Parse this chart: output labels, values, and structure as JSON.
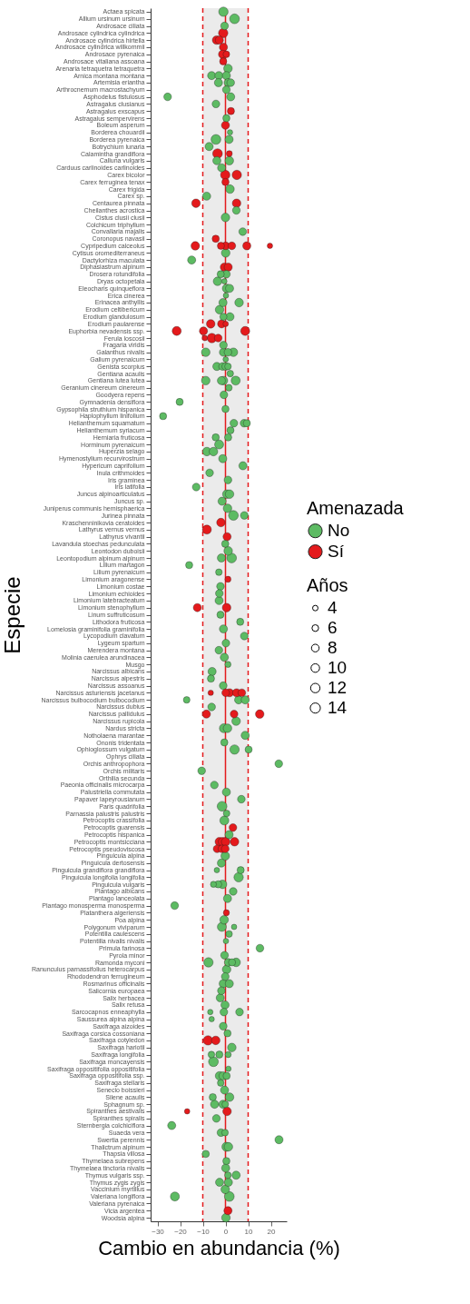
{
  "chart_data": {
    "type": "bubble",
    "orientation": "horizontal",
    "xlabel": "Cambio en abundancia (%)",
    "ylabel": "Especie",
    "legend_title": "Amenazada",
    "annotations": [
      "Años"
    ],
    "legend": "right",
    "grid": false,
    "marker": "circle",
    "xlim": [
      -33,
      27
    ],
    "xticks": [
      -30,
      -20,
      -10,
      0,
      10,
      20
    ],
    "size_legend": [
      4,
      6,
      8,
      10,
      12,
      14
    ],
    "categories": [
      "Actaea spicata",
      "Allium ursinum ursinum",
      "Androsace ciliata",
      "Androsace cylindrica cylindrica",
      "Androsace cylindrica hirtella",
      "Androsace cylindrica willkommii",
      "Androsace pyrenaica",
      "Androsace vitaliana assoana",
      "Arenaria tetraquetra tetraquetra",
      "Arnica montana montana",
      "Artemisia eriantha",
      "Arthrocnemum macrostachyum",
      "Asphodelus fistulosus",
      "Astragalus clusianus",
      "Astragalus exscapus",
      "Astragalus sempervirens",
      "Boleum asperum",
      "Borderea chouardii",
      "Borderea pyrenaica",
      "Botrychium lunaria",
      "Calamintha grandiflora",
      "Calluna vulgaris",
      "Carduus carlinoides carlinoides",
      "Carex bicolor",
      "Carex ferruginea tenax",
      "Carex frigida",
      "Carex sp.",
      "Centaurea pinnata",
      "Cheilanthes acrostica",
      "Cistus clusii clusii",
      "Colchicum triphyllum",
      "Convallaria majalis",
      "Coronopus navasii",
      "Cypripedium calceolus",
      "Cytisus oromediterraneus",
      "Dactylorhiza maculata",
      "Diphasiastrum alpinum",
      "Drosera rotundifolia",
      "Dryas octopetala",
      "Eleocharis quinqueflora",
      "Erica cinerea",
      "Erinacea anthyllis",
      "Erodium celtibericum",
      "Erodium glandulosum",
      "Erodium paularense",
      "Euphorbia nevadensis ssp.",
      "Ferula loscosii",
      "Fragaria viridis",
      "Galanthus nivalis",
      "Galium pyrenaicum",
      "Genista scorpius",
      "Gentiana acaulis",
      "Gentiana lutea lutea",
      "Geranium cinereum cinereum",
      "Goodyera repens",
      "Gymnadenia densiflora",
      "Gypsophila struthium hispanica",
      "Haplophyllum linifolium",
      "Helianthemum squamatum",
      "Helianthemum syriacum",
      "Herniaria fruticosa",
      "Horminum pyrenaicum",
      "Huperzia selago",
      "Hymenostylium recurvirostrum",
      "Hypericum caprifolium",
      "Inula crithmoides",
      "Iris graminea",
      "Iris latifolia",
      "Juncus alpinoarticulatus",
      "Juncus sp.",
      "Juniperus communis hemisphaerica",
      "Jurinea pinnata",
      "Kraschenninikovia ceratoides",
      "Lathyrus vernus vernus",
      "Lathyrus vivantii",
      "Lavandula stoechas pedunculata",
      "Leontodon duboisii",
      "Leontopodium alpinum alpinum",
      "Lilium martagon",
      "Lilium pyrenaicum",
      "Limonium aragonense",
      "Limonium costae",
      "Limonium echioides",
      "Limonium latebracteatum",
      "Limonium stenophyllum",
      "Linum suffruticosum",
      "Lithodora fruticosa",
      "Lomelosia graminifolia graminifolia",
      "Lycopodium clavatum",
      "Lygeum spartum",
      "Merendera montana",
      "Molinia caerulea arundinacea",
      "Musgo",
      "Narcissus albicans",
      "Narcissus alpestris",
      "Narcissus assoanus",
      "Narcissus asturiensis jacetanus",
      "Narcissus bulbocodium bulbocodium",
      "Narcissus dubius",
      "Narcissus pallidulus",
      "Narcissus rupicola",
      "Nardus stricta",
      "Notholaena marantae",
      "Ononis tridentata",
      "Ophioglossum vulgatum",
      "Ophrys ciliata",
      "Orchis anthropophora",
      "Orchis militaris",
      "Orthilia secunda",
      "Paeonia officinalis microcarpa",
      "Palustriella commutata",
      "Papaver lapeyrousianum",
      "Paris quadrifolia",
      "Parnassia palustris palustris",
      "Petrocoptis crassifolia",
      "Petrocoptis guarensis",
      "Petrocoptis hispanica",
      "Petrocoptis montsicciana",
      "Petrocoptis pseudoviscosa",
      "Pinguicula alpina",
      "Pinguicula dertosensis",
      "Pinguicula grandiflora grandiflora",
      "Pinguicula longifolia longifolia",
      "Pinguicula vulgaris",
      "Plantago albicans",
      "Plantago lanceolata",
      "Plantago monosperma monosperma",
      "Platanthera algeriensis",
      "Poa alpina",
      "Polygonum viviparum",
      "Potentilla caulescens",
      "Potentilla nivalis nivalis",
      "Primula farinosa",
      "Pyrola minor",
      "Ramonda myconi",
      "Ranunculus parnassifolius heterocarpus",
      "Rhododendron ferrugineum",
      "Rosmarinus officinalis",
      "Salicornia europaea",
      "Salix herbacea",
      "Salix retusa",
      "Sarcocapnos enneaphylla",
      "Saussurea alpina alpina",
      "Saxifraga aizoides",
      "Saxifraga corsica cossoniana",
      "Saxifraga cotyledon",
      "Saxifraga hariotii",
      "Saxifraga longifolia",
      "Saxifraga moncayensis",
      "Saxifraga oppositifolia oppositifolia",
      "Saxifraga oppositifolia ssp.",
      "Saxifraga stellaris",
      "Senecio boissieri",
      "Silene acaulis",
      "Sphagnum sp.",
      "Spiranthes aestivalis",
      "Spiranthes spiralis",
      "Sternbergia colchiciflora",
      "Suaeda vera",
      "Swertia perennis",
      "Thalictrum alpinum",
      "Thapsia villosa",
      "Thymelaea subrepens",
      "Thymelaea tinctoria nivalis",
      "Thymus vulgaris ssp.",
      "Thymus zygis zygis",
      "Vaccinium myrtillus",
      "Valeriana longiflora",
      "Valeriana pyrenaica",
      "Vicia argentea",
      "Woodsia alpina"
    ],
    "bands": [
      {
        "axis": "x",
        "from": -10,
        "to": 10,
        "color": "#ebebeb"
      }
    ],
    "ref_lines": [
      {
        "axis": "x",
        "value": -10,
        "color": "#e41a1c",
        "line_style": "dashed"
      },
      {
        "axis": "x",
        "value": 0,
        "color": "#e41a1c",
        "line_style": "solid"
      },
      {
        "axis": "x",
        "value": 10,
        "color": "#e41a1c",
        "line_style": "dashed"
      }
    ],
    "series": [
      {
        "name": "No",
        "color": "#5dbb63",
        "x": [
          "Actaea spicata",
          "Allium ursinum ursinum",
          "Androsace ciliata",
          "Arenaria tetraquetra tetraquetra",
          "Arnica montana montana",
          "Arnica montana montana",
          "Arnica montana montana",
          "Artemisia eriantha",
          "Artemisia eriantha",
          "Artemisia eriantha",
          "Arthrocnemum macrostachyum",
          "Asphodelus fistulosus",
          "Asphodelus fistulosus",
          "Astragalus clusianus",
          "Astragalus sempervirens",
          "Borderea chouardii",
          "Borderea pyrenaica",
          "Borderea pyrenaica",
          "Botrychium lunaria",
          "Calluna vulgaris",
          "Calluna vulgaris",
          "Carduus carlinoides carlinoides",
          "Carex frigida",
          "Carex sp.",
          "Cheilanthes acrostica",
          "Cistus clusii clusii",
          "Convallaria majalis",
          "Cytisus oromediterraneus",
          "Dactylorhiza maculata",
          "Drosera rotundifolia",
          "Drosera rotundifolia",
          "Dryas octopetala",
          "Dryas octopetala",
          "Eleocharis quinqueflora",
          "Eleocharis quinqueflora",
          "Erica cinerea",
          "Erinacea anthyllis",
          "Erinacea anthyllis",
          "Erodium celtibericum",
          "Erodium glandulosum",
          "Erodium glandulosum",
          "Fragaria viridis",
          "Galanthus nivalis",
          "Galanthus nivalis",
          "Galanthus nivalis",
          "Galanthus nivalis",
          "Galium pyrenaicum",
          "Genista scorpius",
          "Genista scorpius",
          "Genista scorpius",
          "Genista scorpius",
          "Gentiana acaulis",
          "Gentiana lutea lutea",
          "Gentiana lutea lutea",
          "Gentiana lutea lutea",
          "Gentiana lutea lutea",
          "Geranium cinereum cinereum",
          "Goodyera repens",
          "Gymnadenia densiflora",
          "Gypsophila struthium hispanica",
          "Haplophyllum linifolium",
          "Helianthemum squamatum",
          "Helianthemum squamatum",
          "Helianthemum squamatum",
          "Helianthemum syriacum",
          "Herniaria fruticosa",
          "Herniaria fruticosa",
          "Horminum pyrenaicum",
          "Huperzia selago",
          "Huperzia selago",
          "Hymenostylium recurvirostrum",
          "Hypericum caprifolium",
          "Inula crithmoides",
          "Iris graminea",
          "Iris latifolia",
          "Juncus alpinoarticulatus",
          "Juncus alpinoarticulatus",
          "Juncus sp.",
          "Juniperus communis hemisphaerica",
          "Jurinea pinnata",
          "Jurinea pinnata",
          "Lavandula stoechas pedunculata",
          "Leontodon duboisii",
          "Leontopodium alpinum alpinum",
          "Leontopodium alpinum alpinum",
          "Lilium martagon",
          "Lilium pyrenaicum",
          "Limonium costae",
          "Limonium echioides",
          "Limonium latebracteatum",
          "Linum suffruticosum",
          "Lithodora fruticosa",
          "Lomelosia graminifolia graminifolia",
          "Lycopodium clavatum",
          "Lygeum spartum",
          "Merendera montana",
          "Molinia caerulea arundinacea",
          "Musgo",
          "Narcissus albicans",
          "Narcissus alpestris",
          "Narcissus assoanus",
          "Narcissus bulbocodium bulbocodium",
          "Narcissus bulbocodium bulbocodium",
          "Narcissus bulbocodium bulbocodium",
          "Narcissus dubius",
          "Narcissus rupicola",
          "Nardus stricta",
          "Nardus stricta",
          "Notholaena marantae",
          "Ononis tridentata",
          "Ophioglossum vulgatum",
          "Ophioglossum vulgatum",
          "Orchis anthropophora",
          "Orchis militaris",
          "Paeonia officinalis microcarpa",
          "Palustriella commutata",
          "Papaver lapeyrousianum",
          "Paris quadrifolia",
          "Parnassia palustris palustris",
          "Petrocoptis crassifolia",
          "Petrocoptis hispanica",
          "Pinguicula alpina",
          "Pinguicula dertosensis",
          "Pinguicula grandiflora grandiflora",
          "Pinguicula grandiflora grandiflora",
          "Pinguicula longifolia longifolia",
          "Pinguicula vulgaris",
          "Pinguicula vulgaris",
          "Pinguicula vulgaris",
          "Plantago albicans",
          "Plantago lanceolata",
          "Plantago monosperma monosperma",
          "Poa alpina",
          "Polygonum viviparum",
          "Polygonum viviparum",
          "Potentilla caulescens",
          "Potentilla nivalis nivalis",
          "Primula farinosa",
          "Pyrola minor",
          "Ramonda myconi",
          "Ramonda myconi",
          "Ramonda myconi",
          "Ramonda myconi",
          "Ranunculus parnassifolius heterocarpus",
          "Rhododendron ferrugineum",
          "Rosmarinus officinalis",
          "Rosmarinus officinalis",
          "Salicornia europaea",
          "Salix herbacea",
          "Salix retusa",
          "Sarcocapnos enneaphylla",
          "Sarcocapnos enneaphylla",
          "Sarcocapnos enneaphylla",
          "Saussurea alpina alpina",
          "Saxifraga aizoides",
          "Saxifraga corsica cossoniana",
          "Saxifraga hariotii",
          "Saxifraga longifolia",
          "Saxifraga longifolia",
          "Saxifraga longifolia",
          "Saxifraga moncayensis",
          "Saxifraga oppositifolia oppositifolia",
          "Saxifraga oppositifolia ssp.",
          "Saxifraga oppositifolia ssp.",
          "Saxifraga oppositifolia ssp.",
          "Saxifraga stellaris",
          "Senecio boissieri",
          "Silene acaulis",
          "Silene acaulis",
          "Sphagnum sp.",
          "Sphagnum sp.",
          "Sphagnum sp.",
          "Spiranthes spiralis",
          "Sternbergia colchiciflora",
          "Suaeda vera",
          "Suaeda vera",
          "Swertia perennis",
          "Thalictrum alpinum",
          "Thalictrum alpinum",
          "Thapsia villosa",
          "Thymelaea subrepens",
          "Thymelaea tinctoria nivalis",
          "Thymus vulgaris ssp.",
          "Thymus vulgaris ssp.",
          "Thymus zygis zygis",
          "Thymus zygis zygis",
          "Vaccinium myrtillus",
          "Valeriana longiflora",
          "Valeriana longiflora",
          "Woodsia alpina"
        ],
        "values": [
          -0.9,
          4.0,
          -0.4,
          1.1,
          -6.1,
          -2.9,
          0.4,
          -3.1,
          1.2,
          2.3,
          0.4,
          -25.5,
          2.3,
          -4.2,
          0.4,
          2.0,
          -4.2,
          1.6,
          -7.2,
          -3.8,
          1.7,
          -1.7,
          2.0,
          -8.3,
          4.8,
          0,
          7.6,
          0.1,
          -14.9,
          -2.1,
          0.4,
          -3.5,
          -0.5,
          0.5,
          1.8,
          0.2,
          -1.1,
          6.0,
          -2.6,
          -0.9,
          2.0,
          -0.9,
          -8.7,
          -0.9,
          1.1,
          3.5,
          0.1,
          -3.8,
          -1.3,
          0.1,
          1.1,
          2.1,
          -8.7,
          -1.8,
          -0.9,
          4.5,
          1.5,
          -0.7,
          -20.2,
          0,
          -27.5,
          3.7,
          8.2,
          9.4,
          2.2,
          -4.3,
          1.2,
          -2.8,
          -8.2,
          -5.3,
          -1.2,
          7.7,
          -7.0,
          1.1,
          -12.9,
          0.6,
          1.8,
          -1.5,
          0.9,
          3.5,
          8.3,
          -0.1,
          1.2,
          -1.8,
          2.7,
          -16.0,
          -2.9,
          -2.2,
          -2.7,
          -2.8,
          -2.2,
          6.5,
          -0.9,
          8.3,
          0.2,
          -2.9,
          -0.5,
          1.1,
          -5.9,
          -6.4,
          -1.0,
          -17.1,
          5.8,
          8.7,
          -6.1,
          4.7,
          -0.7,
          0.9,
          8.7,
          -0.5,
          4.0,
          10.2,
          23.5,
          -10.5,
          -4.9,
          0.4,
          7.0,
          -1.5,
          0.5,
          -0.5,
          1.6,
          -0.1,
          -1.8,
          -3.8,
          6.7,
          5.8,
          -5.3,
          -3.2,
          -1.3,
          3.4,
          0.9,
          -22.4,
          -0.6,
          -1.6,
          3.8,
          1.6,
          0.2,
          15.2,
          -0.4,
          -7.5,
          1.2,
          2.9,
          4.7,
          0.5,
          -0.1,
          -1.0,
          1.7,
          -1.8,
          -2.3,
          -0.2,
          -6.7,
          -0.7,
          6.2,
          -6.1,
          -1.0,
          0.9,
          2.8,
          -6.2,
          -2.7,
          1.2,
          -5.3,
          1.3,
          -2.6,
          -1.1,
          0.5,
          -2.1,
          -0.4,
          -5.6,
          1.8,
          -4.8,
          -1.1,
          -0.1,
          -4.0,
          -23.7,
          -2.0,
          -0.2,
          23.6,
          0.4,
          1.3,
          -8.7,
          0.4,
          0.1,
          1.1,
          4.7,
          -2.6,
          1.3,
          -0.1,
          -22.3,
          1.7,
          0.2
        ],
        "sizes": [
          12,
          13,
          8,
          10,
          9,
          9,
          9,
          9,
          9,
          8,
          8,
          8,
          9,
          8,
          7,
          4,
          13,
          9,
          9,
          9,
          10,
          9,
          10,
          9,
          8,
          10,
          8,
          10,
          9,
          7,
          8,
          10,
          4,
          10,
          9,
          4,
          9,
          10,
          10,
          7,
          9,
          8,
          10,
          9,
          8,
          10,
          4,
          9,
          8,
          8,
          6,
          6,
          10,
          9,
          10,
          11,
          6,
          8,
          7,
          7,
          7,
          8,
          8,
          7,
          7,
          7,
          7,
          11,
          10,
          10,
          9,
          9,
          8,
          8,
          8,
          10,
          10,
          9,
          10,
          13,
          8,
          7,
          10,
          9,
          13,
          7,
          6,
          8,
          8,
          9,
          7,
          7,
          9,
          8,
          8,
          8,
          9,
          5,
          9,
          7,
          8,
          6,
          9,
          9,
          8,
          10,
          11,
          10,
          9,
          7,
          12,
          7,
          8,
          8,
          8,
          9,
          8,
          13,
          6,
          11,
          9,
          10,
          9,
          4,
          7,
          12,
          5,
          7,
          10,
          8,
          9,
          8,
          10,
          11,
          4,
          6,
          4,
          8,
          8,
          12,
          8,
          7,
          10,
          10,
          8,
          9,
          9,
          8,
          9,
          9,
          4,
          8,
          8,
          4,
          8,
          7,
          10,
          6,
          7,
          5,
          13,
          4,
          10,
          9,
          7,
          6,
          9,
          7,
          10,
          9,
          9,
          6,
          8,
          9,
          8,
          6,
          9,
          11,
          10,
          7,
          7,
          9,
          6,
          9,
          9,
          9,
          10,
          11,
          13,
          10
        ]
      },
      {
        "name": "Sí",
        "color": "#e41a1c",
        "x": [
          "Androsace cylindrica cylindrica",
          "Androsace cylindrica hirtella",
          "Androsace cylindrica hirtella",
          "Androsace cylindrica willkommii",
          "Androsace pyrenaica",
          "Androsace pyrenaica",
          "Androsace vitaliana assoana",
          "Astragalus exscapus",
          "Boleum asperum",
          "Calamintha grandiflora",
          "Calamintha grandiflora",
          "Carex bicolor",
          "Carex bicolor",
          "Carex ferruginea tenax",
          "Centaurea pinnata",
          "Centaurea pinnata",
          "Coronopus navasii",
          "Cypripedium calceolus",
          "Cypripedium calceolus",
          "Cypripedium calceolus",
          "Cypripedium calceolus",
          "Cypripedium calceolus",
          "Cypripedium calceolus",
          "Diphasiastrum alpinum",
          "Diphasiastrum alpinum",
          "Erodium paularense",
          "Erodium paularense",
          "Erodium paularense",
          "Euphorbia nevadensis ssp.",
          "Euphorbia nevadensis ssp.",
          "Euphorbia nevadensis ssp.",
          "Ferula loscosii",
          "Ferula loscosii",
          "Ferula loscosii",
          "Kraschenninikovia ceratoides",
          "Lathyrus vernus vernus",
          "Lathyrus vivantii",
          "Limonium aragonense",
          "Limonium stenophyllum",
          "Limonium stenophyllum",
          "Narcissus asturiensis jacetanus",
          "Narcissus asturiensis jacetanus",
          "Narcissus asturiensis jacetanus",
          "Narcissus asturiensis jacetanus",
          "Narcissus asturiensis jacetanus",
          "Narcissus pallidulus",
          "Narcissus pallidulus",
          "Narcissus pallidulus",
          "Petrocoptis guarensis",
          "Petrocoptis montsicciana",
          "Petrocoptis montsicciana",
          "Petrocoptis montsicciana",
          "Petrocoptis montsicciana",
          "Petrocoptis pseudoviscosa",
          "Petrocoptis pseudoviscosa",
          "Petrocoptis pseudoviscosa",
          "Platanthera algeriensis",
          "Saxifraga cotyledon",
          "Saxifraga cotyledon",
          "Spiranthes aestivalis",
          "Spiranthes aestivalis",
          "Vicia argentea"
        ],
        "values": [
          -1.0,
          -3.9,
          -2.7,
          -0.9,
          -1.3,
          0.4,
          -1.0,
          2.4,
          0,
          -3.5,
          1.7,
          -0.1,
          5.0,
          0,
          -13.0,
          4.9,
          -4.3,
          -13.3,
          -2.0,
          0.1,
          2.8,
          9.4,
          19.6,
          -0.5,
          1.2,
          -6.5,
          -1.7,
          0.1,
          -21.5,
          -9.7,
          8.7,
          -9.1,
          -6.0,
          -3.2,
          -2.0,
          -8.2,
          0.7,
          1.1,
          -12.4,
          0.5,
          -6.5,
          0.1,
          1.8,
          4.9,
          7.2,
          -8.4,
          3.8,
          15.1,
          3.3,
          -2.7,
          -1.3,
          0.1,
          4.0,
          -3.7,
          -1.6,
          -0.1,
          0.4,
          -7.7,
          -4.3,
          -16.9,
          0.7,
          1.1
        ],
        "sizes": [
          12,
          10,
          9,
          9,
          9,
          6,
          7,
          7,
          9,
          13,
          5,
          12,
          12,
          7,
          10,
          10,
          7,
          10,
          7,
          8,
          8,
          9,
          4,
          9,
          9,
          10,
          9,
          4,
          11,
          9,
          11,
          4,
          12,
          8,
          10,
          11,
          9,
          5,
          9,
          10,
          4,
          8,
          9,
          9,
          8,
          9,
          8,
          10,
          8,
          10,
          10,
          10,
          10,
          8,
          8,
          8,
          5,
          12,
          10,
          4,
          10,
          9
        ]
      }
    ]
  }
}
